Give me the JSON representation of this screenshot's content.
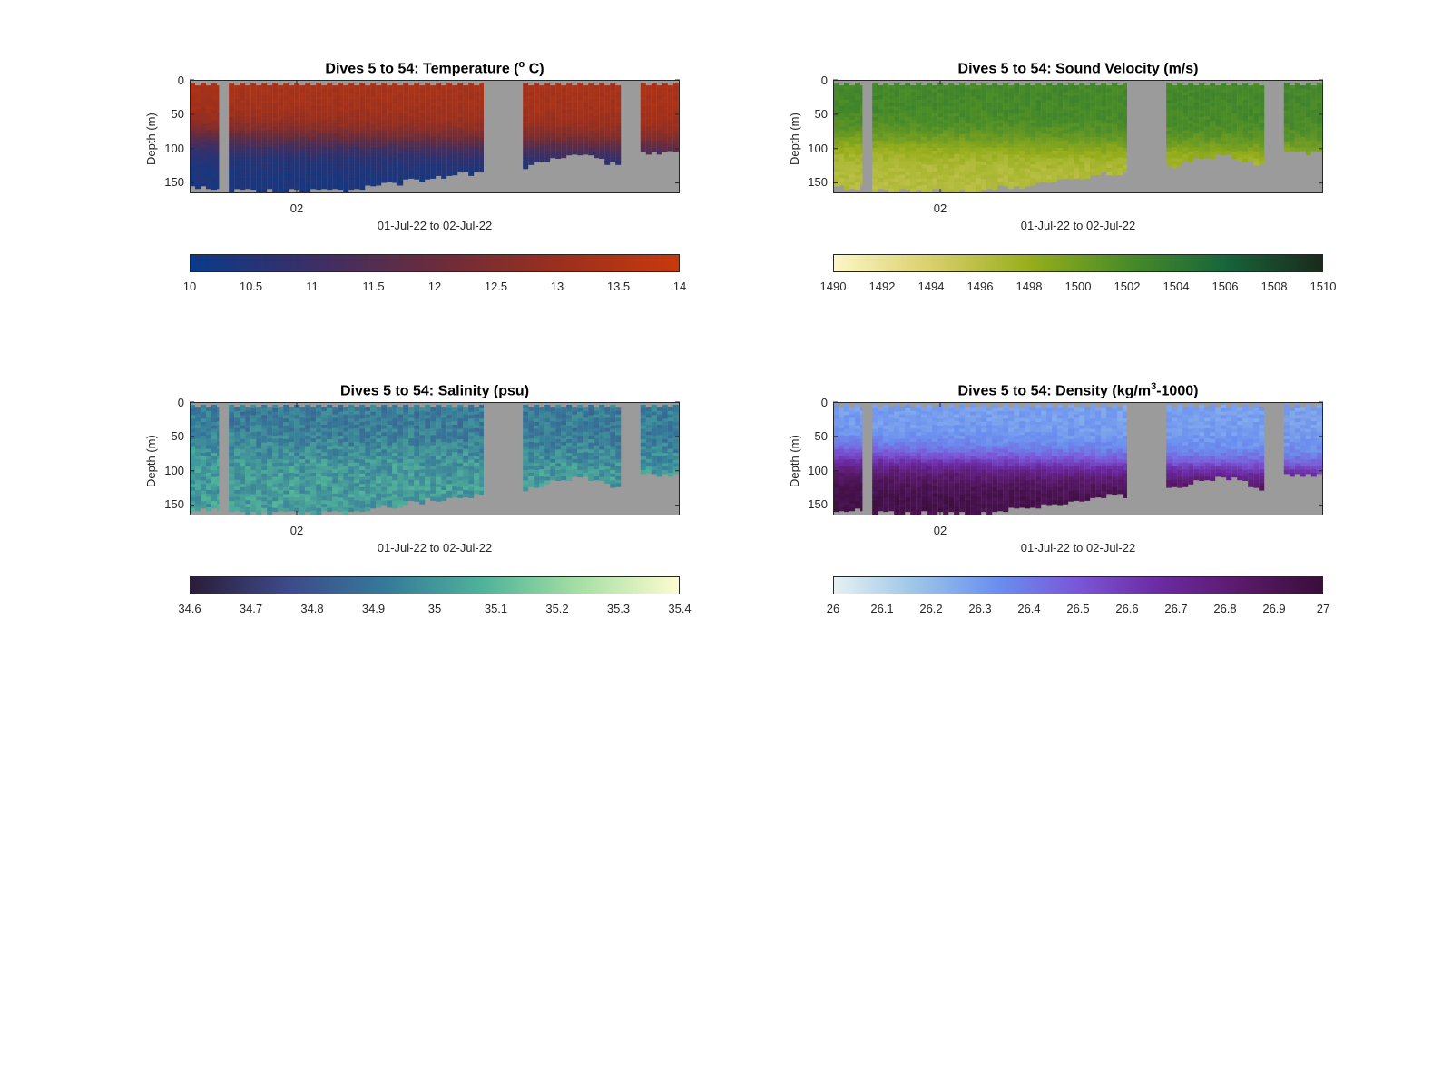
{
  "chart_data": [
    {
      "type": "heatmap",
      "title_prefix": "Dives 5 to 54: Temperature (",
      "title_sup": "o",
      "title_suffix": " C)",
      "ylabel": "Depth (m)",
      "xlabel": "01-Jul-22 to 02-Jul-22",
      "xtick_label": "02",
      "yticks": [
        "0",
        "50",
        "100",
        "150"
      ],
      "ylim": [
        0,
        165
      ],
      "colorbar_ticks": [
        "10",
        "10.5",
        "11",
        "11.5",
        "12",
        "12.5",
        "13",
        "13.5",
        "14"
      ],
      "clim": [
        10,
        14
      ],
      "colormap": [
        "#0b3a8a",
        "#3b2f66",
        "#6a2c3c",
        "#9a2f1e",
        "#c8390c"
      ],
      "surface_value": 13.3,
      "deep_value": 10.3,
      "cline_depth": [
        80,
        95
      ],
      "noise": 0.15
    },
    {
      "type": "heatmap",
      "title_prefix": "Dives 5 to 54: Sound Velocity (m/s)",
      "title_sup": "",
      "title_suffix": "",
      "ylabel": "Depth (m)",
      "xlabel": "01-Jul-22 to 02-Jul-22",
      "xtick_label": "02",
      "yticks": [
        "0",
        "50",
        "100",
        "150"
      ],
      "ylim": [
        0,
        165
      ],
      "colorbar_ticks": [
        "1490",
        "1492",
        "1494",
        "1496",
        "1498",
        "1500",
        "1502",
        "1504",
        "1506",
        "1508",
        "1510"
      ],
      "clim": [
        1490,
        1510
      ],
      "colormap": [
        "#fdf6c6",
        "#d9cf6b",
        "#97ae1c",
        "#4a8c28",
        "#17653a",
        "#1a2a1c"
      ],
      "surface_value": 1502.5,
      "deep_value": 1496.2,
      "cline_depth": [
        85,
        100
      ],
      "noise": 0.6
    },
    {
      "type": "heatmap",
      "title_prefix": "Dives 5 to 54: Salinity (psu)",
      "title_sup": "",
      "title_suffix": "",
      "ylabel": "Depth (m)",
      "xlabel": "01-Jul-22 to 02-Jul-22",
      "xtick_label": "02",
      "yticks": [
        "0",
        "50",
        "100",
        "150"
      ],
      "ylim": [
        0,
        165
      ],
      "colorbar_ticks": [
        "34.6",
        "34.7",
        "34.8",
        "34.9",
        "35",
        "35.1",
        "35.2",
        "35.3",
        "35.4"
      ],
      "clim": [
        34.6,
        35.4
      ],
      "colormap": [
        "#2a1d38",
        "#3d4a8a",
        "#357a9a",
        "#4fb39a",
        "#a8e0a4",
        "#fdfbd0"
      ],
      "surface_value": 34.92,
      "deep_value": 35.02,
      "cline_depth": [
        60,
        80
      ],
      "noise": 0.07
    },
    {
      "type": "heatmap",
      "title_prefix": "Dives 5 to 54: Density (kg/m",
      "title_sup": "3",
      "title_suffix": "-1000)",
      "ylabel": "Depth (m)",
      "xlabel": "01-Jul-22 to 02-Jul-22",
      "xtick_label": "02",
      "yticks": [
        "0",
        "50",
        "100",
        "150"
      ],
      "ylim": [
        0,
        165
      ],
      "colorbar_ticks": [
        "26",
        "26.1",
        "26.2",
        "26.3",
        "26.4",
        "26.5",
        "26.6",
        "26.7",
        "26.8",
        "26.9",
        "27"
      ],
      "clim": [
        26,
        27
      ],
      "colormap": [
        "#e6f1f2",
        "#9cc5e8",
        "#6a8ff0",
        "#7a56d6",
        "#6b2aa2",
        "#5a1a6a",
        "#3a0d3a"
      ],
      "surface_value": 26.28,
      "deep_value": 26.95,
      "cline_depth": [
        80,
        100
      ],
      "noise": 0.04
    }
  ]
}
